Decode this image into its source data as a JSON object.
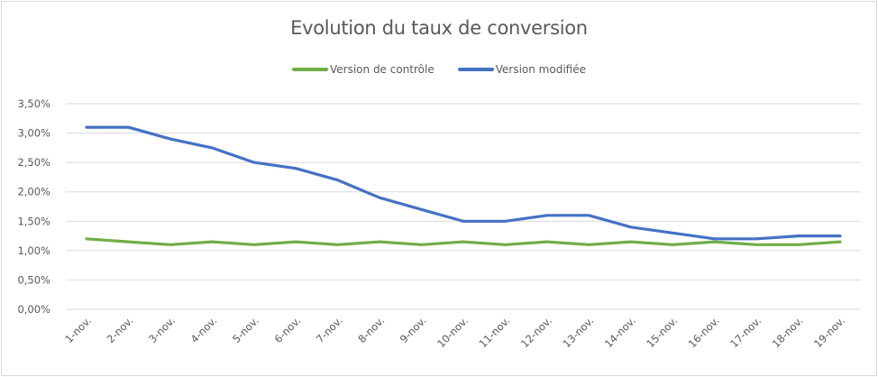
{
  "chart_data": {
    "type": "line",
    "title": "Evolution du taux de conversion",
    "xlabel": "",
    "ylabel": "",
    "ylim": [
      0,
      3.5
    ],
    "y_ticks": [
      "0,00%",
      "0,50%",
      "1,00%",
      "1,50%",
      "2,00%",
      "2,50%",
      "3,00%",
      "3,50%"
    ],
    "grid": true,
    "legend_position": "top",
    "categories": [
      "1-nov.",
      "2-nov.",
      "3-nov.",
      "4-nov.",
      "5-nov.",
      "6-nov.",
      "7-nov.",
      "8-nov.",
      "9-nov.",
      "10-nov.",
      "11-nov.",
      "12-nov.",
      "13-nov.",
      "14-nov.",
      "15-nov.",
      "16-nov.",
      "17-nov.",
      "18-nov.",
      "19-nov."
    ],
    "series": [
      {
        "name": "Version de contrôle",
        "color": "#70ad47",
        "values": [
          1.2,
          1.15,
          1.1,
          1.15,
          1.1,
          1.15,
          1.1,
          1.15,
          1.1,
          1.15,
          1.1,
          1.15,
          1.1,
          1.15,
          1.1,
          1.15,
          1.1,
          1.1,
          1.15
        ]
      },
      {
        "name": "Version modifiée",
        "color": "#4472c4",
        "values": [
          3.1,
          3.1,
          2.9,
          2.75,
          2.5,
          2.4,
          2.2,
          1.9,
          1.7,
          1.5,
          1.5,
          1.6,
          1.6,
          1.4,
          1.3,
          1.2,
          1.2,
          1.25,
          1.25
        ]
      }
    ]
  }
}
